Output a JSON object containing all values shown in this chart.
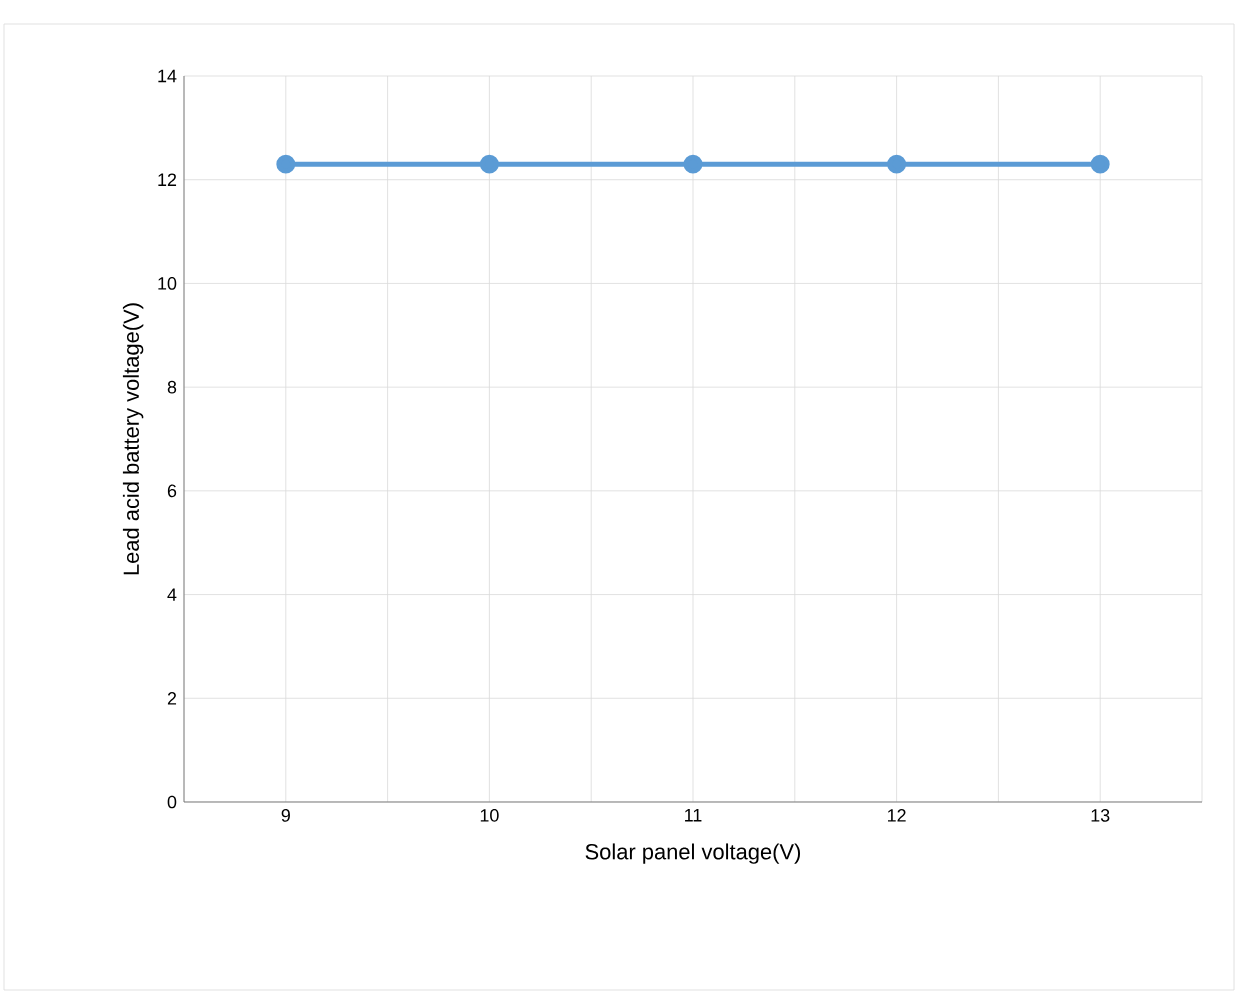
{
  "chart_data": {
    "type": "line",
    "categories": [
      "9",
      "10",
      "11",
      "12",
      "13"
    ],
    "series": [
      {
        "color": "#5b9bd5",
        "values": [
          12.3,
          12.3,
          12.3,
          12.3,
          12.3
        ]
      }
    ],
    "xlabel": "Solar panel voltage(V)",
    "ylabel": "Lead acid battery voltage(V)",
    "ylim": [
      0,
      14
    ],
    "yticks": [
      0,
      2,
      4,
      6,
      8,
      10,
      12,
      14
    ],
    "grid": true,
    "marker": "circle",
    "line_style": "solid"
  }
}
